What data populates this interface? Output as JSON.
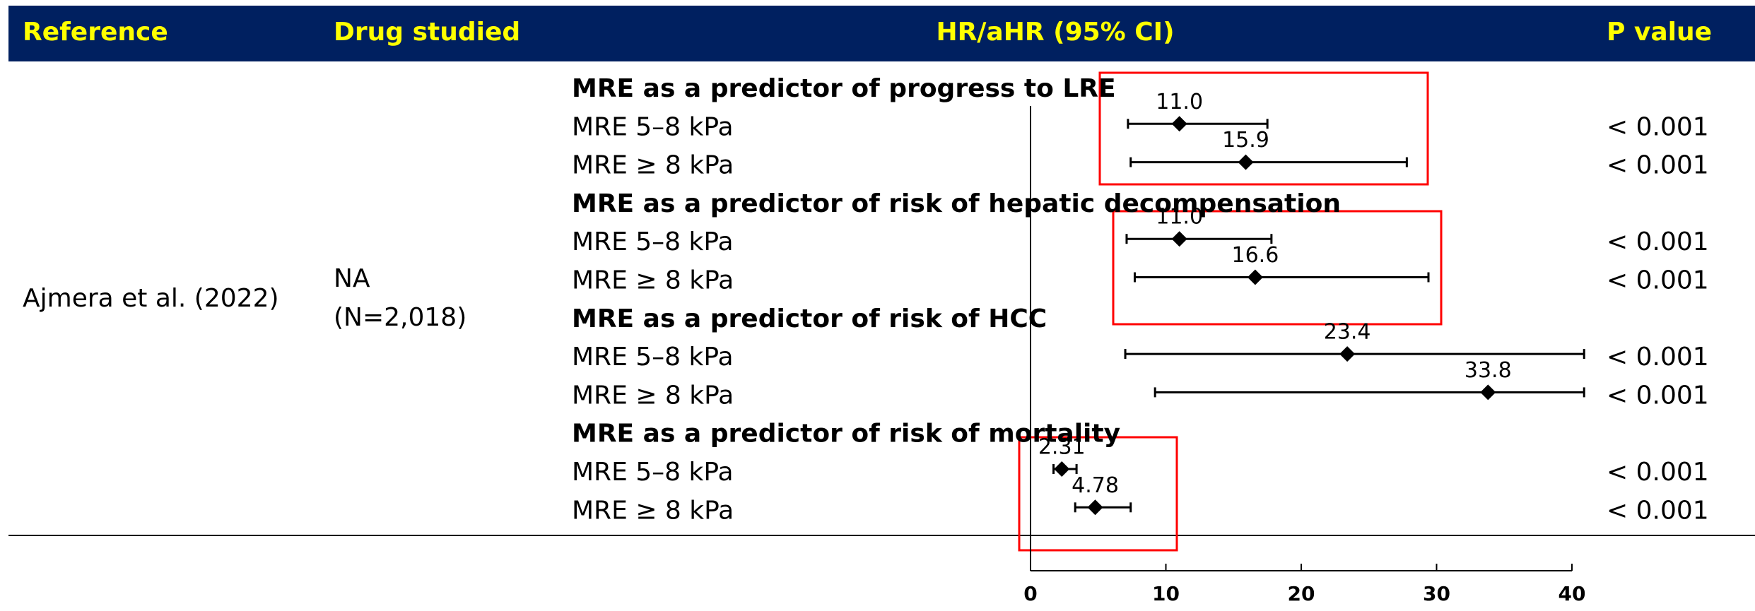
{
  "chart_data": {
    "type": "forest",
    "columns": [
      "Reference",
      "Drug studied",
      "HR/aHR (95% CI)",
      "P value"
    ],
    "reference": "Ajmera et al. (2022)",
    "drug": [
      "NA",
      "(N=2,018)"
    ],
    "xlim": [
      0,
      40
    ],
    "xticks": [
      0,
      10,
      20,
      30,
      40
    ],
    "groups": [
      {
        "title": "MRE as a predictor of progress to LRE",
        "rows": [
          {
            "label": "MRE 5–8 kPa",
            "value": 11.0,
            "value_label": "11.0",
            "lo": 7.2,
            "hi": 17.5,
            "p_value": "< 0.001"
          },
          {
            "label": "MRE ≥ 8 kPa",
            "value": 15.9,
            "value_label": "15.9",
            "lo": 7.4,
            "hi": 27.8,
            "p_value": "< 0.001"
          }
        ]
      },
      {
        "title": "MRE as a predictor of risk of hepatic decompensation",
        "rows": [
          {
            "label": "MRE 5–8 kPa",
            "value": 11.0,
            "value_label": "11.0",
            "lo": 7.1,
            "hi": 17.8,
            "p_value": "< 0.001"
          },
          {
            "label": "MRE ≥ 8 kPa",
            "value": 16.6,
            "value_label": "16.6",
            "lo": 7.7,
            "hi": 29.4,
            "p_value": "< 0.001"
          }
        ]
      },
      {
        "title": "MRE as a predictor of risk of HCC",
        "rows": [
          {
            "label": "MRE 5–8 kPa",
            "value": 23.4,
            "value_label": "23.4",
            "lo": 7.0,
            "hi": 40.9,
            "p_value": "< 0.001"
          },
          {
            "label": "MRE ≥ 8 kPa",
            "value": 33.8,
            "value_label": "33.8",
            "lo": 9.2,
            "hi": 40.9,
            "p_value": "< 0.001"
          }
        ]
      },
      {
        "title": "MRE as a predictor of risk of mortality",
        "rows": [
          {
            "label": "MRE 5–8 kPa",
            "value": 2.31,
            "value_label": "2.31",
            "lo": 1.7,
            "hi": 3.4,
            "p_value": "< 0.001"
          },
          {
            "label": "MRE ≥ 8 kPa",
            "value": 4.78,
            "value_label": "4.78",
            "lo": 3.3,
            "hi": 7.4,
            "p_value": "< 0.001"
          }
        ]
      }
    ]
  }
}
